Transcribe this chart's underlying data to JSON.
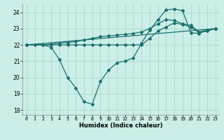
{
  "title": "",
  "xlabel": "Humidex (Indice chaleur)",
  "background_color": "#cceee8",
  "grid_color": "#aaddcc",
  "line_color": "#1a7070",
  "xlim": [
    -0.5,
    23.5
  ],
  "ylim": [
    17.7,
    24.5
  ],
  "yticks": [
    18,
    19,
    20,
    21,
    22,
    23,
    24
  ],
  "xticks": [
    0,
    1,
    2,
    3,
    4,
    5,
    6,
    7,
    8,
    9,
    10,
    11,
    12,
    13,
    14,
    15,
    16,
    17,
    18,
    19,
    20,
    21,
    22,
    23
  ],
  "lines": [
    {
      "x": [
        0,
        1,
        2,
        3,
        4,
        5,
        6,
        7,
        8,
        9,
        10,
        11,
        12,
        13,
        14,
        15,
        16,
        17,
        18,
        19,
        20,
        21,
        22,
        23
      ],
      "y": [
        22.0,
        22.0,
        22.0,
        21.85,
        21.1,
        20.0,
        19.35,
        18.5,
        18.35,
        19.75,
        20.45,
        20.9,
        21.0,
        21.2,
        22.1,
        22.9,
        23.55,
        24.15,
        24.2,
        24.1,
        22.75,
        22.7,
        22.9,
        23.0
      ]
    },
    {
      "x": [
        0,
        2,
        3,
        4,
        5,
        6,
        7,
        8,
        9,
        10,
        11,
        12,
        13,
        14,
        15,
        16,
        17,
        18,
        19,
        20,
        21,
        22,
        23
      ],
      "y": [
        22.0,
        22.0,
        22.0,
        22.0,
        22.0,
        22.0,
        22.0,
        22.0,
        22.0,
        22.0,
        22.0,
        22.0,
        22.0,
        22.0,
        22.4,
        22.85,
        23.1,
        23.35,
        23.25,
        23.1,
        22.75,
        22.85,
        23.0
      ]
    },
    {
      "x": [
        0,
        2,
        3,
        4,
        5,
        6,
        7,
        8,
        9,
        10,
        11,
        12,
        13,
        14,
        15,
        16,
        17,
        18,
        19,
        20,
        21,
        22,
        23
      ],
      "y": [
        22.0,
        22.0,
        22.05,
        22.1,
        22.15,
        22.2,
        22.3,
        22.4,
        22.5,
        22.55,
        22.6,
        22.65,
        22.7,
        22.8,
        23.0,
        23.3,
        23.55,
        23.5,
        23.3,
        23.2,
        22.8,
        22.9,
        23.0
      ]
    },
    {
      "x": [
        0,
        23
      ],
      "y": [
        22.0,
        23.0
      ]
    }
  ]
}
